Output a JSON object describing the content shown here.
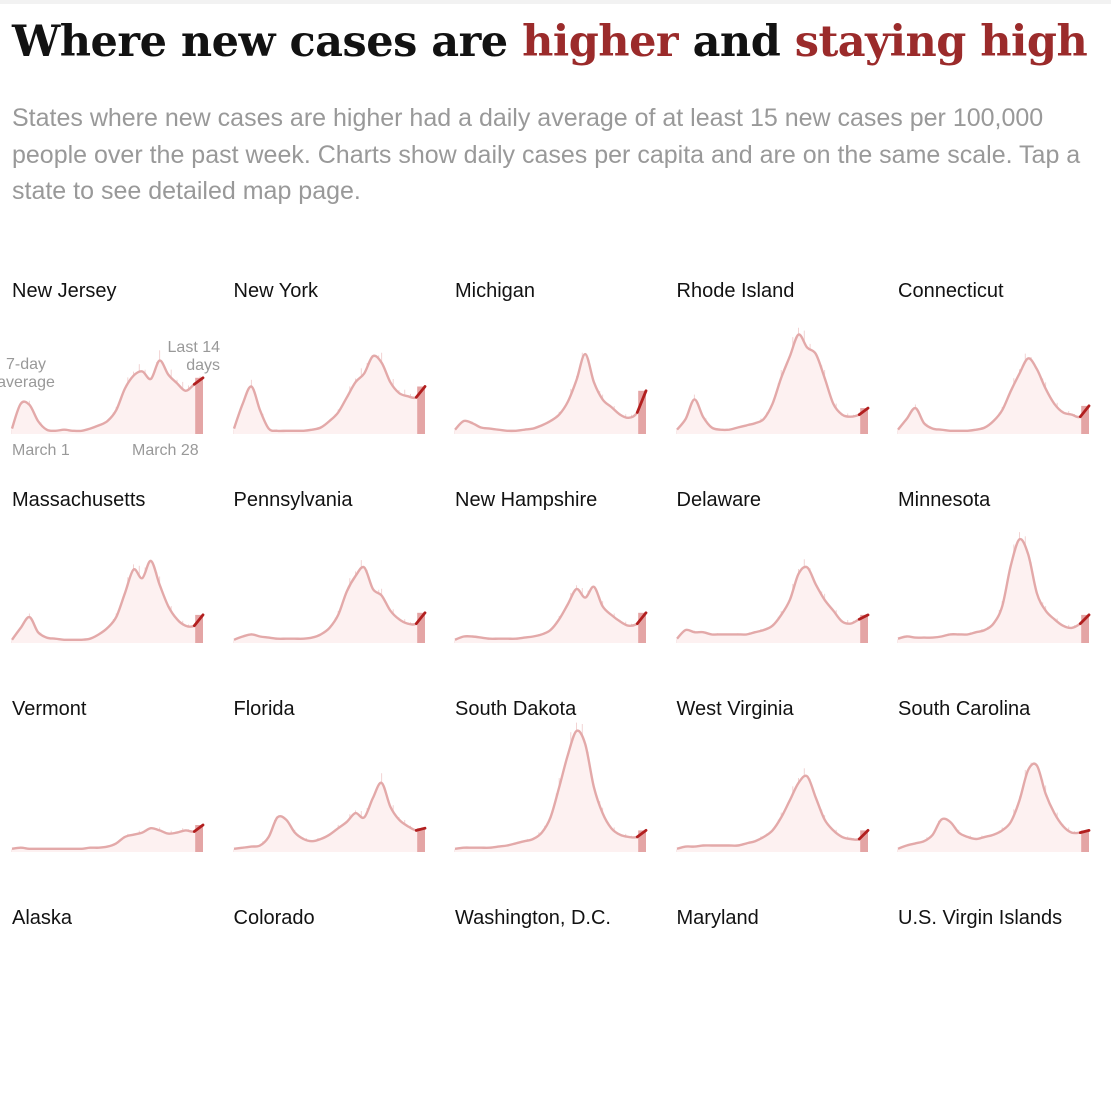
{
  "page": {
    "title_parts": [
      "Where new cases are ",
      "higher",
      " and ",
      "staying high"
    ],
    "subtitle": "States where new cases are higher had a daily average of at least 15 new cases per 100,000 people over the past week. Charts show daily cases per capita and are on the same scale. Tap a state to see detailed map page."
  },
  "annotations": {
    "avg_label_line1": "7-day",
    "avg_label_line2": "average",
    "recent_label_line1": "Last 14",
    "recent_label_line2": "days",
    "start_label": "March 1",
    "end_label": "March 28"
  },
  "colors": {
    "line": "#e3a9a9",
    "recent": "#b21f1f",
    "bars": "#f2d3d3",
    "highlight": "#9b2b2b"
  },
  "chart_data": {
    "type": "area",
    "x_start": "March 1",
    "x_end": "March 28",
    "shared_scale": true,
    "ylim": [
      0,
      100
    ],
    "series": [
      {
        "name": "New Jersey",
        "values": [
          5,
          28,
          27,
          12,
          4,
          3,
          4,
          3,
          3,
          5,
          8,
          12,
          22,
          42,
          54,
          58,
          51,
          68,
          55,
          47,
          40,
          46,
          52
        ]
      },
      {
        "name": "New York",
        "values": [
          5,
          28,
          44,
          22,
          5,
          3,
          3,
          3,
          3,
          4,
          6,
          12,
          20,
          34,
          48,
          56,
          72,
          66,
          48,
          38,
          35,
          34,
          44
        ]
      },
      {
        "name": "Michigan",
        "values": [
          4,
          12,
          10,
          6,
          5,
          4,
          3,
          3,
          4,
          5,
          8,
          12,
          18,
          30,
          50,
          74,
          48,
          32,
          25,
          18,
          15,
          20,
          40
        ]
      },
      {
        "name": "Rhode Island",
        "values": [
          4,
          14,
          32,
          16,
          6,
          4,
          4,
          6,
          8,
          10,
          14,
          28,
          52,
          72,
          92,
          80,
          74,
          52,
          28,
          18,
          16,
          18,
          24
        ]
      },
      {
        "name": "Connecticut",
        "values": [
          4,
          14,
          24,
          10,
          5,
          4,
          3,
          3,
          3,
          4,
          6,
          12,
          22,
          40,
          56,
          70,
          60,
          42,
          28,
          20,
          18,
          16,
          26
        ]
      },
      {
        "name": "Massachusetts",
        "values": [
          3,
          14,
          24,
          10,
          5,
          4,
          3,
          3,
          3,
          4,
          8,
          14,
          24,
          46,
          68,
          60,
          76,
          54,
          34,
          22,
          16,
          16,
          26
        ]
      },
      {
        "name": "Pennsylvania",
        "values": [
          3,
          6,
          8,
          6,
          5,
          4,
          4,
          4,
          4,
          5,
          8,
          14,
          26,
          48,
          62,
          70,
          50,
          44,
          30,
          22,
          18,
          18,
          28
        ]
      },
      {
        "name": "New Hampshire",
        "values": [
          3,
          6,
          6,
          5,
          4,
          4,
          4,
          4,
          5,
          6,
          8,
          12,
          22,
          36,
          50,
          42,
          52,
          34,
          26,
          20,
          16,
          18,
          28
        ]
      },
      {
        "name": "Delaware",
        "values": [
          4,
          12,
          10,
          10,
          8,
          8,
          8,
          8,
          8,
          10,
          12,
          16,
          26,
          40,
          64,
          70,
          54,
          40,
          30,
          20,
          18,
          22,
          26
        ]
      },
      {
        "name": "Minnesota",
        "values": [
          4,
          6,
          5,
          5,
          5,
          6,
          8,
          8,
          8,
          10,
          12,
          18,
          34,
          72,
          96,
          82,
          46,
          30,
          22,
          16,
          14,
          18,
          26
        ]
      },
      {
        "name": "Vermont",
        "values": [
          3,
          4,
          3,
          3,
          3,
          3,
          3,
          3,
          3,
          4,
          4,
          5,
          8,
          14,
          16,
          18,
          22,
          20,
          17,
          18,
          20,
          19,
          25
        ]
      },
      {
        "name": "Florida",
        "values": [
          3,
          4,
          5,
          6,
          14,
          32,
          30,
          18,
          12,
          10,
          12,
          16,
          22,
          28,
          36,
          32,
          50,
          64,
          42,
          30,
          24,
          20,
          22
        ]
      },
      {
        "name": "South Dakota",
        "values": [
          3,
          4,
          4,
          4,
          4,
          5,
          6,
          8,
          10,
          12,
          18,
          32,
          60,
          90,
          112,
          100,
          60,
          36,
          22,
          16,
          14,
          14,
          20
        ]
      },
      {
        "name": "West Virginia",
        "values": [
          3,
          5,
          5,
          6,
          6,
          6,
          6,
          6,
          8,
          10,
          14,
          20,
          32,
          48,
          64,
          70,
          50,
          30,
          20,
          14,
          12,
          12,
          20
        ]
      },
      {
        "name": "South Carolina",
        "values": [
          3,
          6,
          8,
          10,
          16,
          30,
          28,
          18,
          14,
          12,
          14,
          16,
          20,
          28,
          48,
          76,
          80,
          54,
          36,
          24,
          18,
          18,
          20
        ]
      }
    ],
    "labels_only": [
      "Alaska",
      "Colorado",
      "Washington, D.C.",
      "Maryland",
      "U.S. Virgin Islands"
    ]
  }
}
